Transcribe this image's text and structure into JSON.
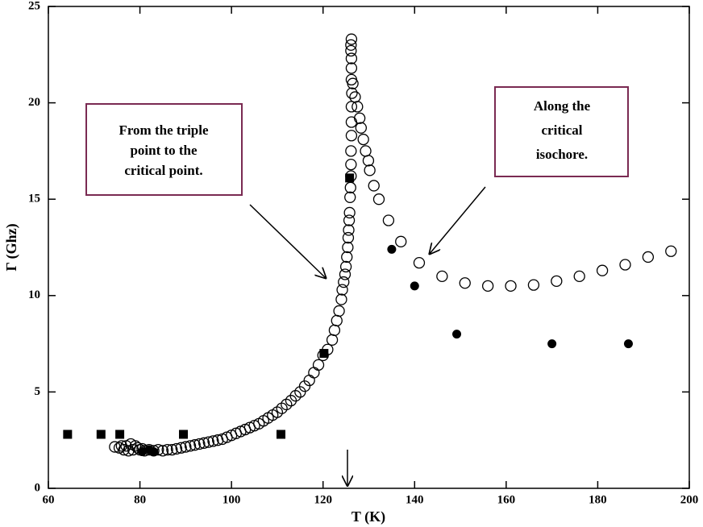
{
  "chart_data": {
    "type": "scatter",
    "x_label": "T (K)",
    "y_label": "Γ (Ghz)",
    "xlim": [
      60,
      200
    ],
    "xticks": [
      60,
      80,
      100,
      120,
      140,
      160,
      180,
      200
    ],
    "ylim": [
      0,
      25
    ],
    "yticks": [
      0,
      5,
      10,
      15,
      20,
      25
    ],
    "annotations": [
      {
        "lines": [
          "From the triple",
          "point to the",
          "critical point."
        ]
      },
      {
        "lines": [
          "Along the",
          "critical",
          "isochore."
        ]
      }
    ],
    "series": [
      {
        "marker": "open-circle",
        "color": "#000000",
        "x": [
          74.5,
          75.5,
          76,
          76.5,
          77,
          77.5,
          78,
          78.5,
          79,
          79.5,
          80,
          80.5,
          81,
          82,
          83,
          84,
          85,
          86,
          87,
          88,
          89,
          90,
          91,
          92,
          93,
          94,
          95,
          96,
          97,
          98,
          99,
          100,
          101,
          102,
          103,
          104,
          105,
          106,
          107,
          108,
          109,
          110,
          111,
          112,
          113,
          114,
          115,
          116,
          117,
          118,
          119,
          120,
          121,
          122,
          122.5,
          123,
          123.5,
          124,
          124.2,
          124.5,
          124.8,
          125,
          125.2,
          125.4,
          125.5,
          125.6,
          125.7,
          125.8,
          125.9,
          126,
          126.1,
          126.1,
          126.1,
          126.2,
          126.2,
          126.2,
          126.3,
          126.2,
          126.2,
          126.2,
          126.1,
          126.1,
          126.2,
          126.5,
          127,
          127.5,
          128,
          128.3,
          128.8,
          129.3,
          129.9,
          130.2,
          131.1,
          132.2,
          134.3,
          137,
          141,
          146,
          151,
          156,
          161,
          166,
          171,
          176,
          181,
          186,
          191,
          196
        ],
        "values": [
          2.15,
          2.1,
          2.2,
          2.0,
          2.2,
          1.95,
          2.3,
          2.0,
          2.2,
          2.1,
          2.0,
          2.05,
          1.95,
          2.0,
          1.95,
          2.0,
          1.95,
          2.0,
          2.0,
          2.05,
          2.1,
          2.15,
          2.2,
          2.25,
          2.3,
          2.35,
          2.4,
          2.45,
          2.5,
          2.55,
          2.65,
          2.75,
          2.85,
          2.95,
          3.05,
          3.15,
          3.25,
          3.35,
          3.5,
          3.65,
          3.8,
          3.95,
          4.15,
          4.35,
          4.55,
          4.8,
          5.0,
          5.3,
          5.6,
          6.0,
          6.4,
          6.9,
          7.2,
          7.7,
          8.2,
          8.7,
          9.2,
          9.8,
          10.3,
          10.7,
          11.1,
          11.5,
          12.0,
          12.5,
          13.0,
          13.4,
          13.9,
          14.3,
          15.1,
          15.6,
          16.2,
          16.8,
          17.5,
          18.3,
          19.0,
          19.8,
          20.5,
          21.2,
          21.8,
          22.3,
          22.7,
          23.0,
          23.3,
          21.0,
          20.3,
          19.8,
          19.2,
          18.7,
          18.1,
          17.5,
          17.0,
          16.5,
          15.7,
          15.0,
          13.9,
          12.8,
          11.7,
          11.0,
          10.65,
          10.5,
          10.5,
          10.55,
          10.75,
          11.0,
          11.3,
          11.6,
          12.0,
          12.3
        ]
      },
      {
        "marker": "square",
        "color": "#000000",
        "x": [
          64.2,
          71.5,
          75.6,
          89.5,
          110.8,
          120.2,
          125.8
        ],
        "values": [
          2.8,
          2.8,
          2.8,
          2.8,
          2.8,
          7.0,
          16.1
        ]
      },
      {
        "marker": "filled-circle",
        "color": "#000000",
        "x": [
          80.5,
          82,
          83,
          135,
          140,
          149.2,
          170,
          186.7
        ],
        "values": [
          1.9,
          2.0,
          1.9,
          12.4,
          10.5,
          8.0,
          7.5,
          7.5
        ]
      }
    ]
  }
}
